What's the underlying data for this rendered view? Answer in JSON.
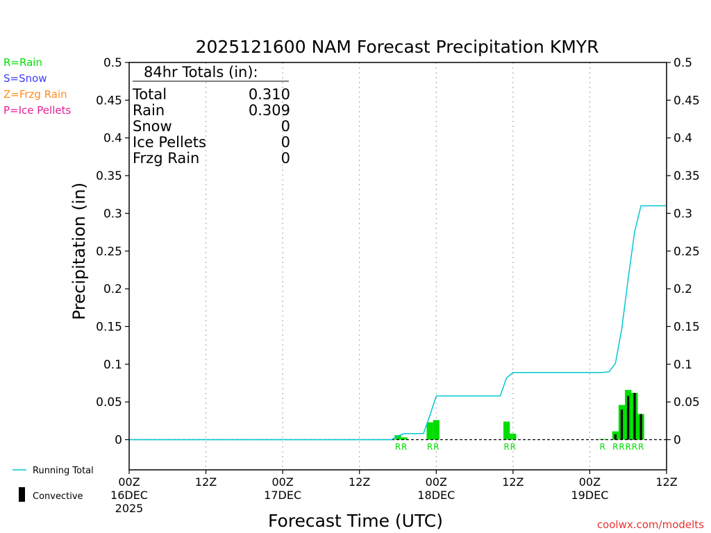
{
  "chart_data": {
    "type": "bar",
    "title": "2025121600 NAM Forecast Precipitation KMYR",
    "xlabel": "Forecast Time (UTC)",
    "ylabel": "Precipitation (in)",
    "ylim": [
      -0.04,
      0.5
    ],
    "yticks": [
      0,
      0.05,
      0.1,
      0.15,
      0.2,
      0.25,
      0.3,
      0.35,
      0.4,
      0.45,
      0.5
    ],
    "ytick_labels": [
      "0",
      "0.05",
      "0.1",
      "0.15",
      "0.2",
      "0.25",
      "0.3",
      "0.35",
      "0.4",
      "0.45",
      "0.5"
    ],
    "xlim_hours": [
      0,
      84
    ],
    "xticks": [
      {
        "hour": 0,
        "lines": [
          "00Z",
          "16DEC",
          "2025"
        ]
      },
      {
        "hour": 12,
        "lines": [
          "12Z"
        ]
      },
      {
        "hour": 24,
        "lines": [
          "00Z",
          "17DEC"
        ]
      },
      {
        "hour": 36,
        "lines": [
          "12Z"
        ]
      },
      {
        "hour": 48,
        "lines": [
          "00Z",
          "18DEC"
        ]
      },
      {
        "hour": 60,
        "lines": [
          "12Z"
        ]
      },
      {
        "hour": 72,
        "lines": [
          "00Z",
          "19DEC"
        ]
      },
      {
        "hour": 84,
        "lines": [
          "12Z"
        ]
      }
    ],
    "grid": "vertical-dotted",
    "bars": [
      {
        "hour": 42,
        "total": 0.006,
        "convective": 0
      },
      {
        "hour": 43,
        "total": 0.003,
        "convective": 0
      },
      {
        "hour": 47,
        "total": 0.023,
        "convective": 0
      },
      {
        "hour": 48,
        "total": 0.026,
        "convective": 0
      },
      {
        "hour": 59,
        "total": 0.024,
        "convective": 0
      },
      {
        "hour": 60,
        "total": 0.008,
        "convective": 0
      },
      {
        "hour": 74,
        "total": 0.001,
        "convective": 0
      },
      {
        "hour": 76,
        "total": 0.011,
        "convective": 0.007
      },
      {
        "hour": 77,
        "total": 0.046,
        "convective": 0.04
      },
      {
        "hour": 78,
        "total": 0.066,
        "convective": 0.058
      },
      {
        "hour": 79,
        "total": 0.062,
        "convective": 0.062
      },
      {
        "hour": 80,
        "total": 0.034,
        "convective": 0.034
      }
    ],
    "ptype_labels": [
      {
        "hour": 42,
        "text": "R"
      },
      {
        "hour": 43,
        "text": "R"
      },
      {
        "hour": 47,
        "text": "R"
      },
      {
        "hour": 48,
        "text": "R"
      },
      {
        "hour": 59,
        "text": "R"
      },
      {
        "hour": 60,
        "text": "R"
      },
      {
        "hour": 74,
        "text": "R"
      },
      {
        "hour": 76,
        "text": "R"
      },
      {
        "hour": 77,
        "text": "R"
      },
      {
        "hour": 78,
        "text": "R"
      },
      {
        "hour": 79,
        "text": "R"
      },
      {
        "hour": 80,
        "text": "R"
      }
    ],
    "running_total": {
      "name": "Running Total",
      "x": [
        0,
        41,
        42,
        43,
        44,
        45,
        46,
        47,
        48,
        49,
        54,
        58,
        59,
        60,
        61,
        64,
        68,
        72,
        73,
        74,
        75,
        76,
        77,
        78,
        79,
        80,
        81,
        82,
        83,
        84
      ],
      "y": [
        0,
        0,
        0.005,
        0.008,
        0.008,
        0.008,
        0.008,
        0.032,
        0.058,
        0.058,
        0.058,
        0.058,
        0.082,
        0.089,
        0.089,
        0.089,
        0.089,
        0.089,
        0.089,
        0.089,
        0.09,
        0.101,
        0.147,
        0.213,
        0.275,
        0.31,
        0.31,
        0.31,
        0.31,
        0.31
      ]
    },
    "colors": {
      "rain": "#00dd00",
      "snow": "#3c3cff",
      "frzg_rain": "#ff8c1e",
      "ice_pellets": "#e61e96",
      "convective": "#000000",
      "running_total": "#00c8d2",
      "grid": "#a0a0a0",
      "attribution": "#e63232"
    }
  },
  "legend_ptypes": [
    {
      "label": "R=Rain",
      "color": "#00dd00"
    },
    {
      "label": "S=Snow",
      "color": "#3c3cff"
    },
    {
      "label": "Z=Frzg Rain",
      "color": "#ff8c1e"
    },
    {
      "label": "P=Ice Pellets",
      "color": "#e61e96"
    }
  ],
  "totals_box": {
    "heading": "84hr Totals (in):",
    "rows": [
      {
        "label": "Total",
        "value": "0.310"
      },
      {
        "label": "Rain",
        "value": "0.309"
      },
      {
        "label": "Snow",
        "value": "0"
      },
      {
        "label": "Ice Pellets",
        "value": "0"
      },
      {
        "label": "Frzg Rain",
        "value": "0"
      }
    ]
  },
  "legend_bottom": {
    "running_total": "Running Total",
    "convective": "Convective"
  },
  "attribution": "coolwx.com/modelts"
}
